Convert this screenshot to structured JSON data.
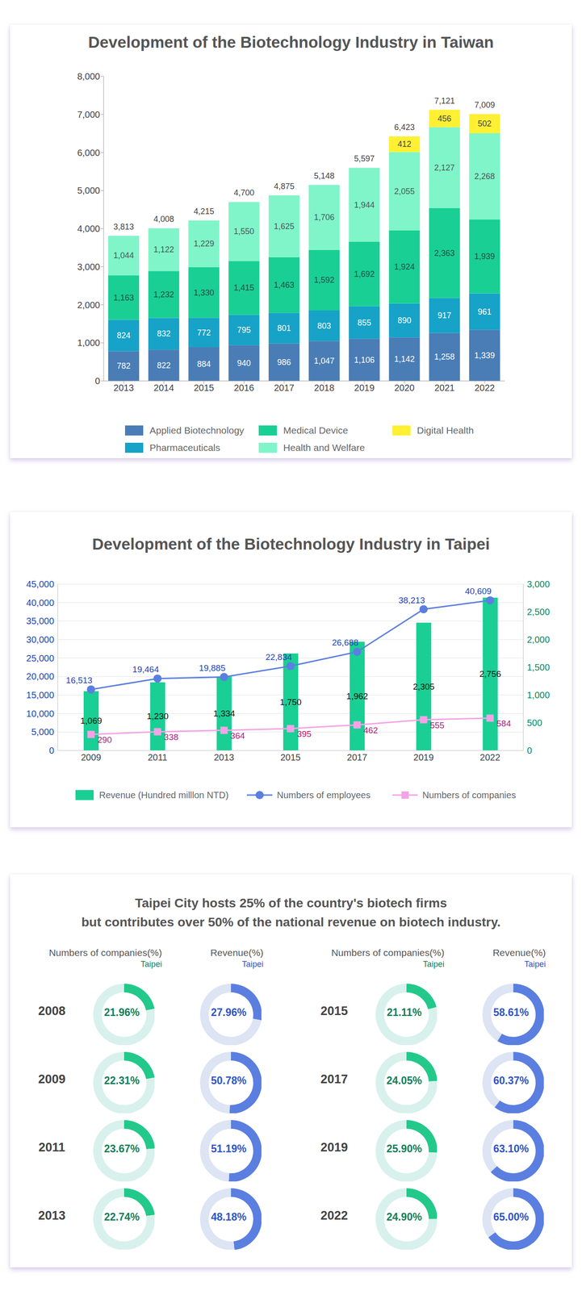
{
  "chart_data": [
    {
      "type": "bar",
      "title": "Development of the Biotechnology Industry in Taiwan",
      "stacked": true,
      "data_labels": true,
      "grid": false,
      "legend": "bottom",
      "categories": [
        "2013",
        "2014",
        "2015",
        "2016",
        "2017",
        "2018",
        "2019",
        "2020",
        "2021",
        "2022"
      ],
      "ylim": [
        0,
        8000
      ],
      "yticks": [
        0,
        {
          "value": 1000,
          "label": "1,000"
        },
        {
          "value": 2000,
          "label": "2,000"
        },
        {
          "value": 3000,
          "label": "3,000"
        },
        {
          "value": 4000,
          "label": "4,000"
        },
        {
          "value": 5000,
          "label": "5,000"
        },
        {
          "value": 6000,
          "label": "6,000"
        },
        {
          "value": 7000,
          "label": "7,000"
        },
        {
          "value": 8000,
          "label": "8,000"
        }
      ],
      "series": [
        {
          "name": "Applied Biotechnology",
          "color": "#4a7db5",
          "values": [
            782,
            822,
            884,
            940,
            986,
            1047,
            1106,
            1142,
            1258,
            1339
          ],
          "value_labels": [
            "782",
            "822",
            "884",
            "940",
            "986",
            "1,047",
            "1,106",
            "1,142",
            "1,258",
            "1,339"
          ]
        },
        {
          "name": "Pharmaceuticals",
          "color": "#17a2c8",
          "values": [
            824,
            832,
            772,
            795,
            801,
            803,
            855,
            890,
            917,
            961
          ]
        },
        {
          "name": "Medical Device",
          "color": "#19cf94",
          "values": [
            1163,
            1232,
            1330,
            1415,
            1463,
            1592,
            1692,
            1924,
            2363,
            1939
          ],
          "value_labels": [
            "1,163",
            "1,232",
            "1,330",
            "1,415",
            "1,463",
            "1,592",
            "1,692",
            "1,924",
            "2,363",
            "1,939"
          ]
        },
        {
          "name": "Health and Welfare",
          "color": "#80f5c9",
          "values": [
            1044,
            1122,
            1229,
            1550,
            1625,
            1706,
            1944,
            2055,
            2127,
            2268
          ],
          "value_labels": [
            "1,044",
            "1,122",
            "1,229",
            "1,550",
            "1,625",
            "1,706",
            "1,944",
            "2,055",
            "2,127",
            "2,268"
          ]
        },
        {
          "name": "Digital Health",
          "color": "#fff033",
          "values": [
            null,
            null,
            null,
            null,
            null,
            null,
            null,
            412,
            456,
            502
          ]
        }
      ],
      "totals": [
        3813,
        4008,
        4215,
        4700,
        4875,
        5148,
        5597,
        6423,
        7121,
        7009
      ],
      "total_labels": [
        "3,813",
        "4,008",
        "4,215",
        "4,700",
        "4,875",
        "5,148",
        "5,597",
        "6,423",
        "7,121",
        "7,009"
      ]
    },
    {
      "type": "bar",
      "title": "Development of the Biotechnology Industry in Taipei",
      "grid": true,
      "legend": "bottom",
      "data_labels": true,
      "categories": [
        "2009",
        "2011",
        "2013",
        "2015",
        "2017",
        "2019",
        "2022"
      ],
      "ylim": [
        0,
        45000
      ],
      "yticks": [
        0,
        {
          "value": 5000,
          "label": "5,000"
        },
        {
          "value": 10000,
          "label": "10,000"
        },
        {
          "value": 15000,
          "label": "15,000"
        },
        {
          "value": 20000,
          "label": "20,000"
        },
        {
          "value": 25000,
          "label": "25,000"
        },
        {
          "value": 30000,
          "label": "30,000"
        },
        {
          "value": 35000,
          "label": "35,000"
        },
        {
          "value": 40000,
          "label": "40,000"
        },
        {
          "value": 45000,
          "label": "45,000"
        }
      ],
      "y2lim": [
        0,
        3000
      ],
      "y2ticks": [
        0,
        500,
        {
          "value": 1000,
          "label": "1,000"
        },
        {
          "value": 1500,
          "label": "1,500"
        },
        {
          "value": 2000,
          "label": "2,000"
        },
        {
          "value": 2500,
          "label": "2,500"
        },
        {
          "value": 3000,
          "label": "3,000"
        }
      ],
      "series": [
        {
          "name": "Revenue (Hundred milllon NTD)",
          "type": "bar",
          "axis": "y2",
          "color": "#19cf94",
          "values": [
            1069,
            1230,
            1334,
            1750,
            1962,
            2305,
            2756
          ],
          "value_labels": [
            "1,069",
            "1,230",
            "1,334",
            "1,750",
            "1,962",
            "2,305",
            "2,756"
          ]
        },
        {
          "name": "Numbers of employees",
          "type": "line",
          "marker": "circle",
          "color": "#5b7fe0",
          "values": [
            16513,
            19464,
            19885,
            22834,
            26688,
            38213,
            40609
          ],
          "value_labels": [
            "16,513",
            "19,464",
            "19,885",
            "22,834",
            "26,688",
            "38,213",
            "40,609"
          ]
        },
        {
          "name": "Numbers of companies",
          "type": "line",
          "axis": "y2",
          "marker": "square",
          "color": "#f5a3e8",
          "values": [
            290,
            338,
            364,
            395,
            462,
            555,
            584
          ]
        }
      ]
    },
    {
      "type": "donut",
      "title": [
        "Taipei City hosts 25% of the country's biotech firms",
        "but contributes over 50% of the national revenue on biotech industry."
      ],
      "data_labels": true,
      "categories": [
        "2008",
        "2009",
        "2011",
        "2013",
        "2015",
        "2017",
        "2019",
        "2022"
      ],
      "ylim": [
        0,
        100
      ],
      "series": [
        {
          "name": "Numbers of companies(%)",
          "subtitle": "Taipei",
          "color": "#22c98b",
          "values": [
            21.96,
            22.31,
            23.67,
            22.74,
            21.11,
            24.05,
            25.9,
            24.9
          ],
          "value_labels": [
            "21.96%",
            "22.31%",
            "23.67%",
            "22.74%",
            "21.11%",
            "24.05%",
            "25.90%",
            "24.90%"
          ]
        },
        {
          "name": "Revenue(%)",
          "subtitle": "Taipei",
          "color": "#5b7fe0",
          "values": [
            27.96,
            50.78,
            51.19,
            48.18,
            58.61,
            60.37,
            63.1,
            65.0
          ],
          "value_labels": [
            "27.96%",
            "50.78%",
            "51.19%",
            "48.18%",
            "58.61%",
            "60.37%",
            "63.10%",
            "65.00%"
          ]
        }
      ]
    }
  ]
}
